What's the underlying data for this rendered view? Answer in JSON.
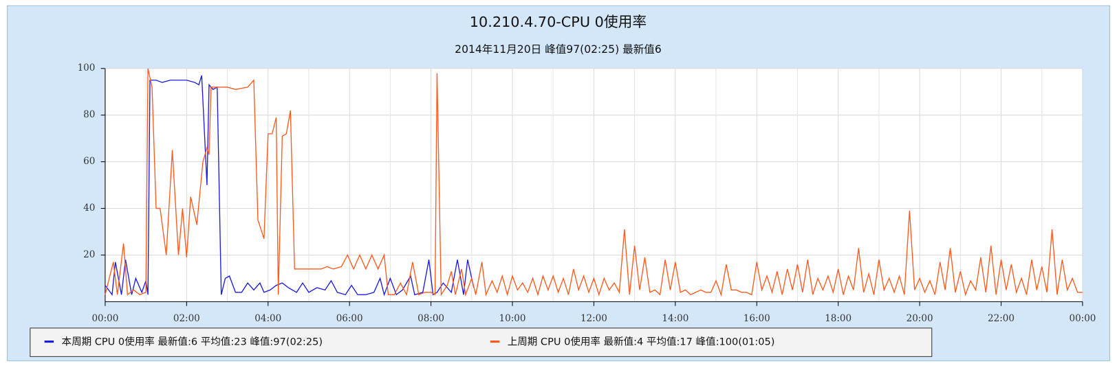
{
  "chart_data": {
    "type": "line",
    "title": "10.210.4.70-CPU 0使用率",
    "subtitle": "2014年11月20日 峰值97(02:25) 最新值6",
    "xlim": [
      0,
      24
    ],
    "xticks": [
      {
        "value": 0,
        "label": "00:00"
      },
      {
        "value": 2,
        "label": "02:00"
      },
      {
        "value": 4,
        "label": "04:00"
      },
      {
        "value": 6,
        "label": "06:00"
      },
      {
        "value": 8,
        "label": "08:00"
      },
      {
        "value": 10,
        "label": "10:00"
      },
      {
        "value": 12,
        "label": "12:00"
      },
      {
        "value": 14,
        "label": "14:00"
      },
      {
        "value": 16,
        "label": "16:00"
      },
      {
        "value": 18,
        "label": "18:00"
      },
      {
        "value": 20,
        "label": "20:00"
      },
      {
        "value": 22,
        "label": "22:00"
      },
      {
        "value": 24,
        "label": "00:00"
      }
    ],
    "ylim": [
      0,
      100
    ],
    "yticks": [
      20,
      40,
      60,
      80,
      100
    ],
    "grid": true,
    "legend": "bottom",
    "series": [
      {
        "name": "本周期 CPU  0使用率 最新值:6  平均值:23  峰值:97(02:25)",
        "color": "#1c1ce0",
        "x": [
          0,
          0.17,
          0.25,
          0.4,
          0.5,
          0.65,
          0.75,
          0.9,
          1.0,
          1.05,
          1.1,
          1.25,
          1.4,
          1.6,
          1.8,
          2.0,
          2.2,
          2.3,
          2.37,
          2.5,
          2.55,
          2.65,
          2.75,
          2.85,
          2.95,
          3.05,
          3.2,
          3.35,
          3.5,
          3.65,
          3.8,
          3.9,
          4.05,
          4.2,
          4.35,
          4.5,
          4.7,
          4.85,
          5.0,
          5.2,
          5.4,
          5.55,
          5.7,
          5.9,
          6.05,
          6.2,
          6.4,
          6.6,
          6.75,
          6.85,
          7.0,
          7.15,
          7.3,
          7.5,
          7.6,
          7.8,
          7.95,
          8.05,
          8.15,
          8.3,
          8.5,
          8.65,
          8.8,
          8.9,
          9.05
        ],
        "values": [
          7,
          3,
          17,
          3,
          18,
          3,
          10,
          4,
          9,
          3,
          95,
          95,
          94,
          95,
          95,
          95,
          94,
          93,
          97,
          50,
          93,
          91,
          92,
          3,
          10,
          11,
          4,
          4,
          8,
          5,
          8,
          4,
          5,
          7,
          8,
          6,
          4,
          8,
          4,
          6,
          5,
          9,
          4,
          3,
          7,
          3,
          3,
          4,
          10,
          3,
          10,
          3,
          5,
          11,
          3,
          4,
          18,
          3,
          4,
          8,
          4,
          18,
          3,
          18,
          6
        ]
      },
      {
        "name": "上周期 CPU  0使用率 最新值:4  平均值:17  峰值:100(01:05)",
        "color": "#ff5a1e",
        "x": [
          0,
          0.2,
          0.3,
          0.45,
          0.55,
          0.7,
          0.85,
          1.0,
          1.05,
          1.15,
          1.25,
          1.35,
          1.5,
          1.65,
          1.8,
          1.9,
          2.0,
          2.1,
          2.25,
          2.4,
          2.5,
          2.55,
          2.6,
          2.75,
          3.0,
          3.2,
          3.5,
          3.65,
          3.75,
          3.9,
          4.0,
          4.1,
          4.2,
          4.25,
          4.35,
          4.45,
          4.55,
          4.65,
          5.0,
          5.3,
          5.45,
          5.6,
          5.8,
          5.95,
          6.1,
          6.25,
          6.4,
          6.55,
          6.7,
          6.85,
          6.95,
          7.1,
          7.25,
          7.4,
          7.55,
          7.7,
          7.85,
          8.0,
          8.1,
          8.15,
          8.25,
          8.4,
          8.5,
          8.6,
          8.75,
          8.85,
          9.0,
          9.1,
          9.25,
          9.35,
          9.5,
          9.625,
          9.75,
          9.875,
          10.0,
          10.125,
          10.25,
          10.375,
          10.5,
          10.625,
          10.75,
          10.875,
          11.0,
          11.125,
          11.25,
          11.375,
          11.5,
          11.625,
          11.75,
          11.875,
          12.0,
          12.125,
          12.25,
          12.375,
          12.5,
          12.625,
          12.75,
          12.875,
          13.0,
          13.125,
          13.25,
          13.375,
          13.5,
          13.625,
          13.75,
          13.875,
          14.0,
          14.125,
          14.25,
          14.375,
          14.5,
          14.625,
          14.75,
          14.875,
          15.0,
          15.125,
          15.25,
          15.375,
          15.5,
          15.625,
          15.75,
          15.875,
          16.0,
          16.125,
          16.25,
          16.375,
          16.5,
          16.625,
          16.75,
          16.875,
          17.0,
          17.125,
          17.25,
          17.375,
          17.5,
          17.625,
          17.75,
          17.875,
          18.0,
          18.125,
          18.25,
          18.375,
          18.5,
          18.625,
          18.75,
          18.875,
          19.0,
          19.125,
          19.25,
          19.375,
          19.5,
          19.625,
          19.75,
          19.875,
          20.0,
          20.125,
          20.25,
          20.375,
          20.5,
          20.625,
          20.75,
          20.875,
          21.0,
          21.125,
          21.25,
          21.375,
          21.5,
          21.625,
          21.75,
          21.875,
          22.0,
          22.125,
          22.25,
          22.375,
          22.5,
          22.625,
          22.75,
          22.875,
          23.0,
          23.125,
          23.25,
          23.375,
          23.5,
          23.625,
          23.75,
          23.875,
          24.0
        ],
        "values": [
          3,
          17,
          3,
          25,
          3,
          5,
          3,
          4,
          100,
          92,
          40,
          40,
          20,
          65,
          20,
          40,
          19,
          45,
          33,
          60,
          66,
          63,
          92,
          92,
          92,
          91,
          92,
          95,
          35,
          27,
          72,
          72,
          79,
          3,
          71,
          72,
          82,
          14,
          14,
          14,
          15,
          14,
          15,
          20,
          14,
          20,
          14,
          20,
          14,
          20,
          3,
          3,
          8,
          3,
          17,
          3,
          4,
          4,
          3,
          98,
          3,
          7,
          13,
          3,
          14,
          3,
          10,
          3,
          17,
          3,
          9,
          4,
          11,
          3,
          11,
          5,
          8,
          4,
          10,
          3,
          11,
          5,
          11,
          4,
          10,
          3,
          14,
          5,
          11,
          4,
          10,
          3,
          10,
          5,
          8,
          4,
          31,
          3,
          24,
          5,
          19,
          4,
          5,
          3,
          18,
          5,
          17,
          4,
          5,
          3,
          4,
          5,
          4,
          4,
          9,
          3,
          16,
          5,
          5,
          4,
          4,
          3,
          17,
          5,
          11,
          4,
          13,
          3,
          14,
          5,
          16,
          4,
          18,
          3,
          10,
          5,
          11,
          4,
          14,
          3,
          11,
          5,
          23,
          4,
          12,
          3,
          18,
          5,
          10,
          4,
          11,
          3,
          39,
          5,
          10,
          4,
          9,
          3,
          17,
          5,
          23,
          4,
          13,
          3,
          9,
          5,
          19,
          4,
          24,
          3,
          18,
          5,
          16,
          4,
          10,
          3,
          18,
          5,
          15,
          4,
          31,
          3,
          18,
          5,
          10,
          4,
          4
        ]
      }
    ]
  }
}
